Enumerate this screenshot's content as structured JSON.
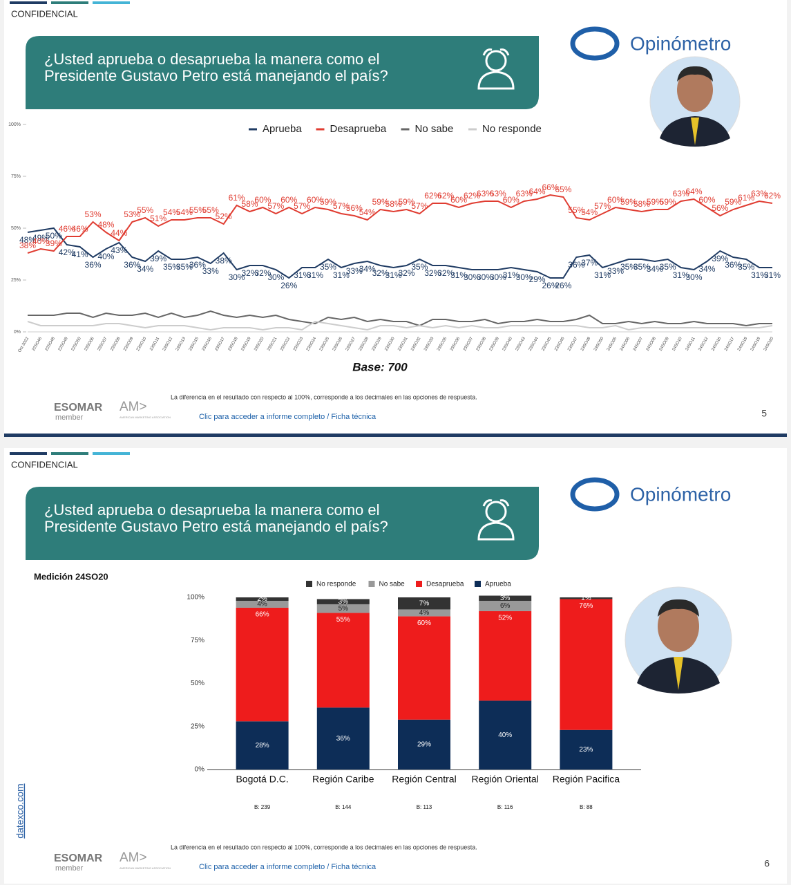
{
  "slides": [
    {
      "confidential": "CONFIDENCIAL",
      "title": [
        "¿Usted aprueba o desaprueba la manera como el",
        "Presidente Gustavo Petro está manejando el país?"
      ],
      "brand": "Opinómetro",
      "base": "Base: 700",
      "footnote": "La diferencia en el resultado con respecto al 100%, corresponde a los decimales en las opciones de respuesta.",
      "link": "Clic para acceder a informe completo / Ficha técnica",
      "esomar": "ESOMAR",
      "esomar_sub": "member",
      "ama": "AM>",
      "ama_sub": "AMERICAN MARKETING ASSOCIATION",
      "page": "5"
    },
    {
      "confidential": "CONFIDENCIAL",
      "title": [
        "¿Usted aprueba o desaprueba la manera como el",
        "Presidente Gustavo Petro está manejando el país?"
      ],
      "brand": "Opinómetro",
      "measurement": "Medición 24SO20",
      "site": "datexco.com",
      "footnote": "La diferencia en el resultado con respecto al 100%, corresponde a los decimales en las opciones de respuesta.",
      "link": "Clic para acceder a informe completo / Ficha técnica",
      "esomar": "ESOMAR",
      "esomar_sub": "member",
      "ama": "AM>",
      "ama_sub": "AMERICAN MARKETING ASSOCIATION",
      "page": "6"
    }
  ],
  "chart_data": [
    {
      "type": "line",
      "categories": [
        "Oct 2022",
        "22SO46",
        "22SO48",
        "22SO49",
        "22SO50",
        "23SO06",
        "23SO07",
        "23SO08",
        "23SO09",
        "23SO10",
        "23SO11",
        "23SO12",
        "23SO13",
        "23SO15",
        "23SO16",
        "23SO17",
        "23SO18",
        "23SO19",
        "23SO20",
        "23SO21",
        "23SO22",
        "23SO23",
        "23SO24",
        "23SO25",
        "23SO26",
        "23SO27",
        "23SO28",
        "23SO29",
        "23SO30",
        "23SO31",
        "23SO32",
        "23SO33",
        "23SO35",
        "23SO36",
        "23SO37",
        "23SO38",
        "23SO39",
        "23SO40",
        "23SO43",
        "23SO44",
        "23SO45",
        "23SO46",
        "23SO47",
        "23SO48",
        "23SO50",
        "24SO05",
        "24SO06",
        "24SO07",
        "24SO08",
        "24SO09",
        "24SO10",
        "24SO11",
        "24SO12",
        "24SO16",
        "24SO17",
        "24SO18",
        "24SO19",
        "24SO20"
      ],
      "ylim": [
        0,
        100
      ],
      "yticks": [
        {
          "value": 0,
          "label": "0%"
        },
        {
          "value": 25,
          "label": "25%"
        },
        {
          "value": 50,
          "label": "50%"
        },
        {
          "value": 75,
          "label": "75%"
        },
        {
          "value": 100,
          "label": "100%"
        }
      ],
      "series": [
        {
          "name": "Aprueba",
          "color": "#1f3b63",
          "values": [
            48,
            49,
            50,
            42,
            41,
            36,
            40,
            43,
            36,
            34,
            39,
            35,
            35,
            36,
            33,
            38,
            30,
            32,
            32,
            30,
            26,
            31,
            31,
            35,
            31,
            33,
            34,
            32,
            31,
            32,
            35,
            32,
            32,
            31,
            30,
            30,
            30,
            31,
            30,
            29,
            26,
            26,
            36,
            37,
            31,
            33,
            35,
            35,
            34,
            35,
            31,
            30,
            34,
            39,
            36,
            35,
            31,
            31
          ],
          "value_labels": [
            "48%",
            "49%",
            "50%",
            "42%",
            "41%",
            "36%",
            "40%",
            "43%",
            "36%",
            "34%",
            "39%",
            "35%",
            "35%",
            "36%",
            "33%",
            "38%",
            "30%",
            "32%",
            "32%",
            "30%",
            "26%",
            "31%",
            "31%",
            "35%",
            "31%",
            "33%",
            "34%",
            "32%",
            "31%",
            "32%",
            "35%",
            "32%",
            "32%",
            "31%",
            "30%",
            "30%",
            "30%",
            "31%",
            "30%",
            "29%",
            "26%",
            "26%",
            "36%",
            "37%",
            "31%",
            "33%",
            "35%",
            "35%",
            "34%",
            "35%",
            "31%",
            "30%",
            "34%",
            "39%",
            "36%",
            "35%",
            "31%",
            "31%"
          ]
        },
        {
          "name": "Desaprueba",
          "color": "#e03c31",
          "values": [
            38,
            40,
            39,
            46,
            46,
            53,
            48,
            44,
            53,
            55,
            51,
            54,
            54,
            55,
            55,
            52,
            61,
            58,
            60,
            57,
            60,
            57,
            60,
            59,
            57,
            56,
            54,
            59,
            58,
            59,
            57,
            62,
            62,
            60,
            62,
            63,
            63,
            60,
            63,
            64,
            66,
            65,
            55,
            54,
            57,
            60,
            59,
            58,
            59,
            59,
            63,
            64,
            60,
            56,
            59,
            61,
            63,
            62
          ],
          "value_labels": [
            "38%",
            "40%",
            "39%",
            "46%",
            "46%",
            "53%",
            "48%",
            "44%",
            "53%",
            "55%",
            "51%",
            "54%",
            "54%",
            "55%",
            "55%",
            "52%",
            "61%",
            "58%",
            "60%",
            "57%",
            "60%",
            "57%",
            "60%",
            "59%",
            "57%",
            "56%",
            "54%",
            "59%",
            "58%",
            "59%",
            "57%",
            "62%",
            "62%",
            "60%",
            "62%",
            "63%",
            "63%",
            "60%",
            "63%",
            "64%",
            "66%",
            "65%",
            "55%",
            "54%",
            "57%",
            "60%",
            "59%",
            "58%",
            "59%",
            "59%",
            "63%",
            "64%",
            "60%",
            "56%",
            "59%",
            "61%",
            "63%",
            "62%"
          ]
        },
        {
          "name": "No sabe",
          "color": "#666666",
          "values": [
            8,
            8,
            8,
            9,
            9,
            7,
            9,
            8,
            8,
            9,
            7,
            9,
            7,
            8,
            10,
            8,
            7,
            8,
            7,
            8,
            6,
            5,
            4,
            7,
            6,
            7,
            5,
            6,
            5,
            5,
            3,
            6,
            6,
            5,
            5,
            6,
            4,
            5,
            5,
            6,
            5,
            5,
            6,
            8,
            4,
            4,
            5,
            4,
            5,
            4,
            4,
            5,
            4,
            4,
            4,
            3,
            4,
            4
          ]
        },
        {
          "name": "No responde",
          "color": "#cccccc",
          "values": [
            5,
            3,
            3,
            3,
            3,
            3,
            4,
            4,
            3,
            2,
            3,
            3,
            3,
            2,
            1,
            2,
            2,
            2,
            1,
            2,
            2,
            1,
            5,
            4,
            3,
            2,
            1,
            3,
            3,
            2,
            3,
            2,
            3,
            2,
            3,
            2,
            2,
            3,
            3,
            3,
            3,
            3,
            3,
            2,
            2,
            3,
            1,
            2,
            2,
            2,
            2,
            2,
            2,
            2,
            2,
            2,
            2,
            3
          ]
        }
      ]
    },
    {
      "type": "stacked_bar",
      "categories": [
        "Bogotá D.C.",
        "Región Caribe",
        "Región Central",
        "Región Oriental",
        "Región Pacifica"
      ],
      "base_labels": [
        "B: 239",
        "B: 144",
        "B: 113",
        "B: 116",
        "B: 88"
      ],
      "ylim": [
        0,
        100
      ],
      "yticks": [
        {
          "value": 0,
          "label": "0%"
        },
        {
          "value": 25,
          "label": "25%"
        },
        {
          "value": 50,
          "label": "50%"
        },
        {
          "value": 75,
          "label": "75%"
        },
        {
          "value": 100,
          "label": "100%"
        }
      ],
      "series": [
        {
          "name": "No responde",
          "color": "#333333",
          "values": [
            2,
            3,
            7,
            3,
            1
          ],
          "value_labels": [
            "2%",
            "3%",
            "7%",
            "3%",
            "1%"
          ]
        },
        {
          "name": "No sabe",
          "color": "#999999",
          "values": [
            4,
            5,
            4,
            6,
            0
          ],
          "value_labels": [
            "4%",
            "5%",
            "4%",
            "6%",
            null
          ]
        },
        {
          "name": "Desaprueba",
          "color": "#ee1c1c",
          "values": [
            66,
            55,
            60,
            52,
            76
          ],
          "value_labels": [
            "66%",
            "55%",
            "60%",
            "52%",
            "76%"
          ]
        },
        {
          "name": "Aprueba",
          "color": "#0d2d57",
          "values": [
            28,
            36,
            29,
            40,
            23
          ],
          "value_labels": [
            "28%",
            "36%",
            "29%",
            "40%",
            "23%"
          ]
        }
      ]
    }
  ]
}
